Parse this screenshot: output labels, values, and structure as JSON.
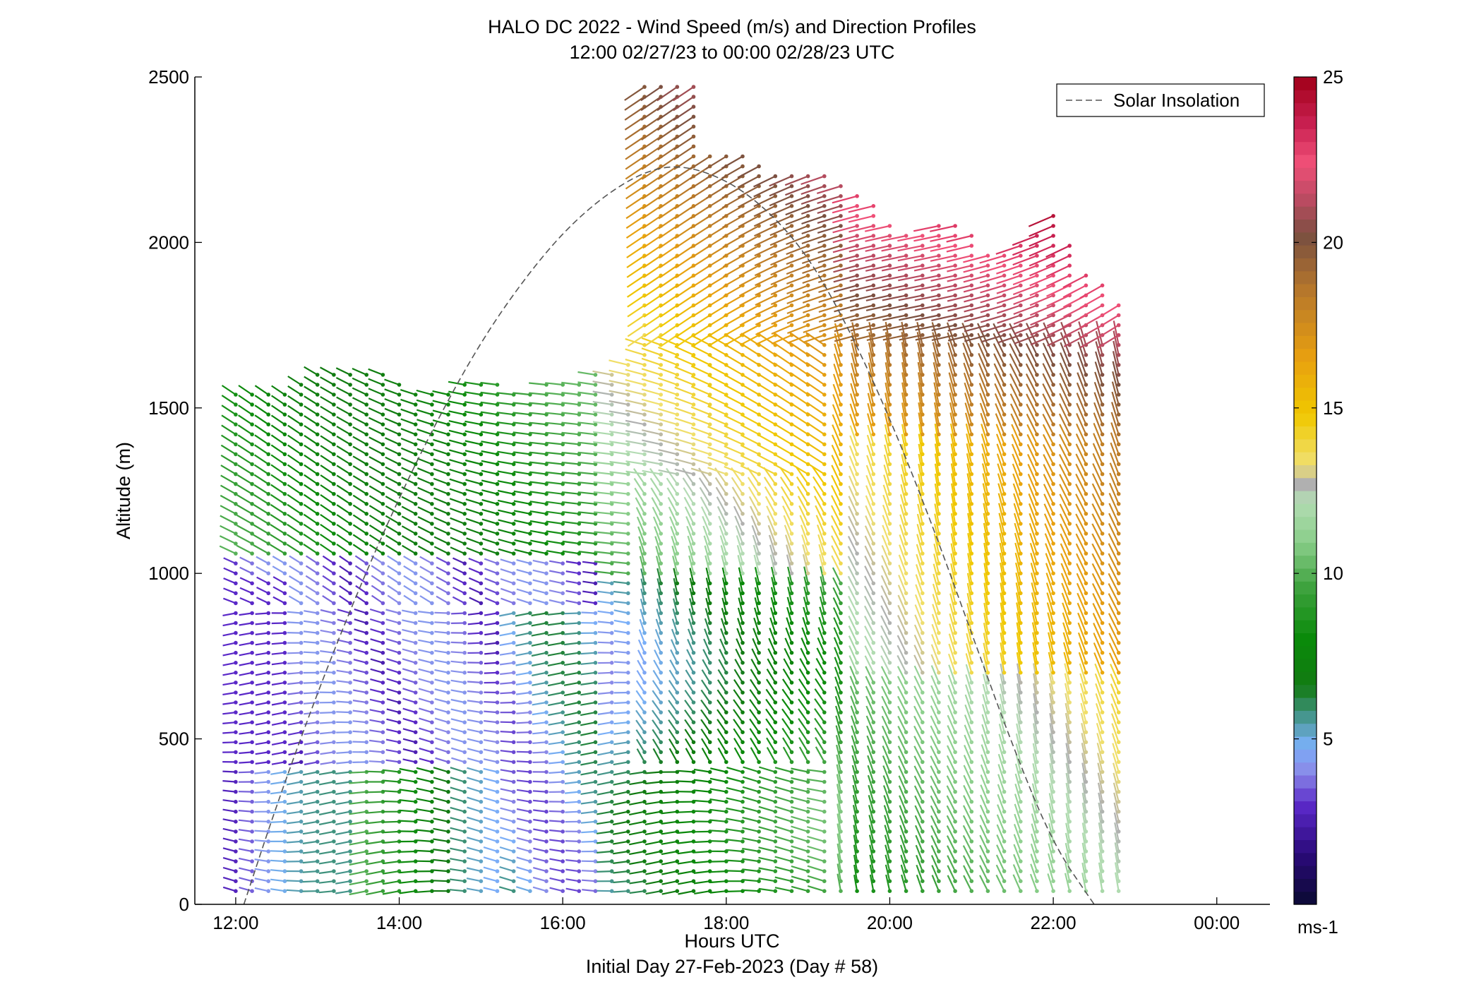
{
  "chart_data": {
    "type": "wind-barb-profile",
    "title": "HALO DC 2022 - Wind Speed (m/s) and Direction Profiles",
    "subtitle": "12:00 02/27/23 to 00:00 02/28/23  UTC",
    "xlabel": "Hours UTC",
    "xlabel2": "Initial Day 27-Feb-2023 (Day # 58)",
    "ylabel": "Altitude (m)",
    "xlim_hours": [
      11.5,
      24.65
    ],
    "ylim": [
      0,
      2500
    ],
    "x_ticks": [
      {
        "value": 12,
        "label": "12:00"
      },
      {
        "value": 14,
        "label": "14:00"
      },
      {
        "value": 16,
        "label": "16:00"
      },
      {
        "value": 18,
        "label": "18:00"
      },
      {
        "value": 20,
        "label": "20:00"
      },
      {
        "value": 22,
        "label": "22:00"
      },
      {
        "value": 24,
        "label": "00:00"
      }
    ],
    "y_ticks": [
      {
        "value": 0,
        "label": "0"
      },
      {
        "value": 500,
        "label": "500"
      },
      {
        "value": 1000,
        "label": "1000"
      },
      {
        "value": 1500,
        "label": "1500"
      },
      {
        "value": 2000,
        "label": "2000"
      },
      {
        "value": 2500,
        "label": "2500"
      }
    ],
    "legend": {
      "label": "Solar Insolation",
      "position": "top-right"
    },
    "colorbar": {
      "range": [
        0,
        25
      ],
      "unit_label": "ms-1",
      "ticks": [
        {
          "value": 5,
          "label": "5"
        },
        {
          "value": 10,
          "label": "10"
        },
        {
          "value": 15,
          "label": "15"
        },
        {
          "value": 20,
          "label": "20"
        },
        {
          "value": 25,
          "label": "25"
        }
      ],
      "stops": [
        {
          "v": 0,
          "c": "#0a0a32"
        },
        {
          "v": 1.5,
          "c": "#2a0a78"
        },
        {
          "v": 3,
          "c": "#5a28c8"
        },
        {
          "v": 4,
          "c": "#8a8ae8"
        },
        {
          "v": 4.8,
          "c": "#7ab0f8"
        },
        {
          "v": 5.6,
          "c": "#4a9898"
        },
        {
          "v": 6.6,
          "c": "#127a12"
        },
        {
          "v": 8,
          "c": "#0a8a0a"
        },
        {
          "v": 9.5,
          "c": "#3aa03a"
        },
        {
          "v": 11,
          "c": "#8ccf8c"
        },
        {
          "v": 12.2,
          "c": "#b4dcb4"
        },
        {
          "v": 12.7,
          "c": "#b0b0b0"
        },
        {
          "v": 13.3,
          "c": "#f0e070"
        },
        {
          "v": 14.8,
          "c": "#f0c800"
        },
        {
          "v": 16.5,
          "c": "#e8a010"
        },
        {
          "v": 18.5,
          "c": "#b8782a"
        },
        {
          "v": 20.2,
          "c": "#7a5040"
        },
        {
          "v": 21.4,
          "c": "#c04a64"
        },
        {
          "v": 22.4,
          "c": "#f05078"
        },
        {
          "v": 23.6,
          "c": "#c82050"
        },
        {
          "v": 25,
          "c": "#a00018"
        }
      ]
    },
    "solar_insolation_curve": {
      "style": "dashed",
      "color": "#555555",
      "hours": [
        12.1,
        12.5,
        13,
        13.5,
        14,
        14.5,
        15,
        15.5,
        16,
        16.5,
        17,
        17.45,
        18,
        18.5,
        19,
        19.5,
        20,
        20.5,
        21,
        21.5,
        22,
        22.5
      ],
      "altitude": [
        0,
        300,
        640,
        950,
        1230,
        1480,
        1700,
        1880,
        2030,
        2140,
        2215,
        2235,
        2190,
        2100,
        1960,
        1740,
        1470,
        1160,
        820,
        480,
        180,
        0
      ]
    },
    "profiles_summary": {
      "time_range_hours": [
        12.0,
        22.9
      ],
      "profile_step_hours": 0.2,
      "altitude_step_m": 30,
      "max_speed_ms": 25,
      "note_levels_hours": [
        {
          "hour": 12.0,
          "top_m": 1560
        },
        {
          "hour": 13.0,
          "top_m": 1620
        },
        {
          "hour": 14.0,
          "top_m": 1530
        },
        {
          "hour": 15.0,
          "top_m": 1600
        },
        {
          "hour": 16.0,
          "top_m": 1580
        },
        {
          "hour": 17.0,
          "top_m": 2480
        },
        {
          "hour": 18.0,
          "top_m": 2260
        },
        {
          "hour": 19.0,
          "top_m": 2200
        },
        {
          "hour": 20.0,
          "top_m": 2030
        },
        {
          "hour": 21.0,
          "top_m": 1980
        },
        {
          "hour": 22.0,
          "top_m": 2080
        },
        {
          "hour": 22.9,
          "top_m": 1810
        }
      ]
    }
  }
}
